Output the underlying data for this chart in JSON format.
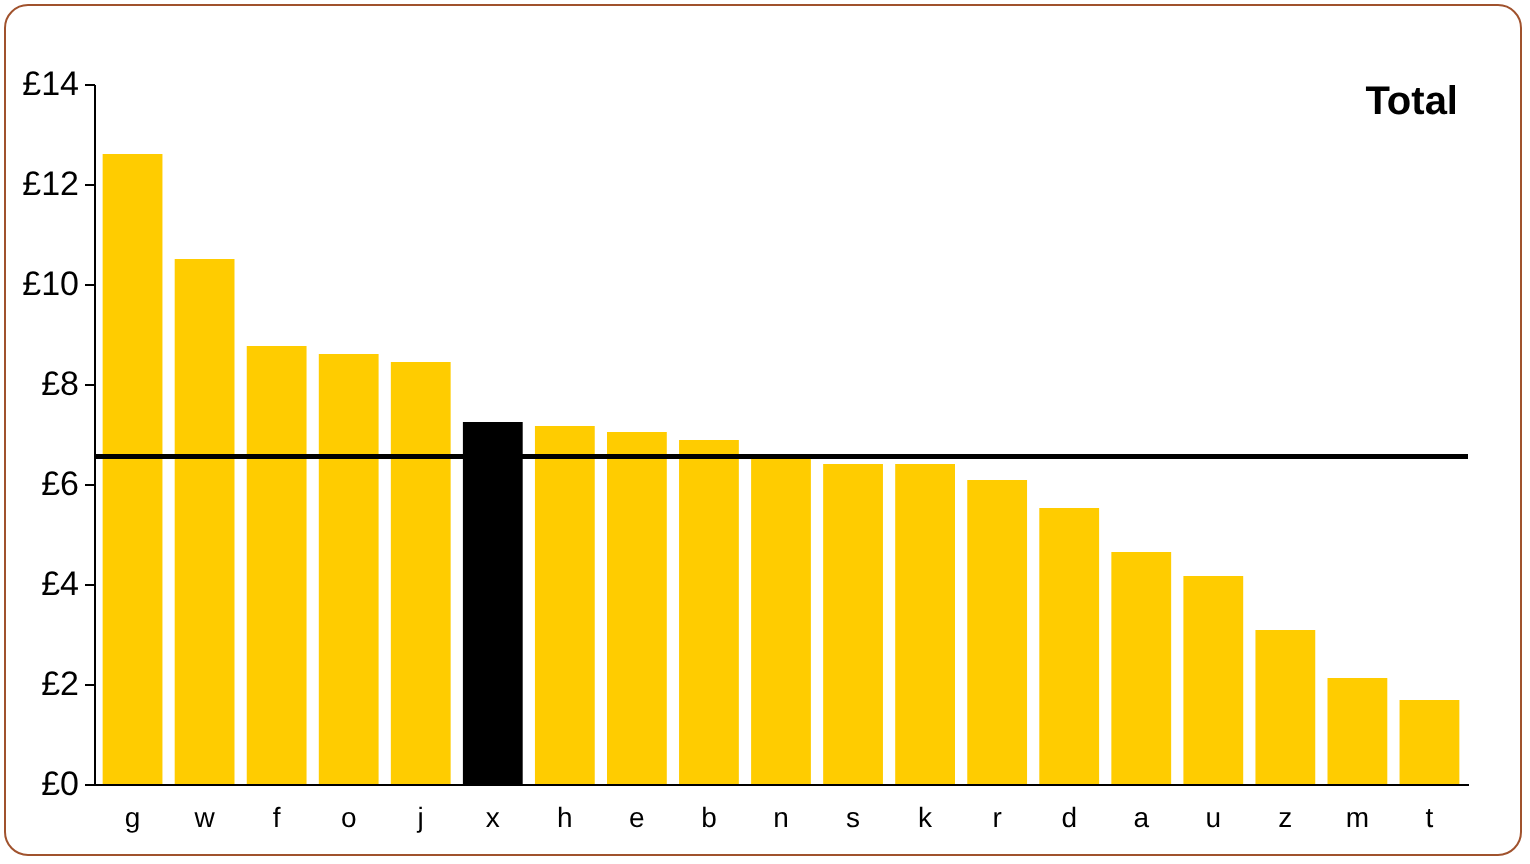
{
  "chart_data": {
    "type": "bar",
    "title": "Total",
    "categories": [
      "g",
      "w",
      "f",
      "o",
      "j",
      "x",
      "h",
      "e",
      "b",
      "n",
      "s",
      "k",
      "r",
      "d",
      "a",
      "u",
      "z",
      "m",
      "t"
    ],
    "values": [
      12.6,
      10.5,
      8.76,
      8.6,
      8.44,
      7.24,
      7.16,
      7.04,
      6.88,
      6.56,
      6.4,
      6.4,
      6.08,
      5.52,
      4.64,
      4.16,
      3.08,
      2.12,
      1.68
    ],
    "colors": [
      "#ffcc00",
      "#ffcc00",
      "#ffcc00",
      "#ffcc00",
      "#ffcc00",
      "#000000",
      "#ffcc00",
      "#ffcc00",
      "#ffcc00",
      "#ffcc00",
      "#ffcc00",
      "#ffcc00",
      "#ffcc00",
      "#ffcc00",
      "#ffcc00",
      "#ffcc00",
      "#ffcc00",
      "#ffcc00",
      "#ffcc00"
    ],
    "ylim": [
      0,
      14
    ],
    "yticks": [
      {
        "value": 0,
        "label": "£0"
      },
      {
        "value": 2,
        "label": "£2"
      },
      {
        "value": 4,
        "label": "£4"
      },
      {
        "value": 6,
        "label": "£6"
      },
      {
        "value": 8,
        "label": "£8"
      },
      {
        "value": 10,
        "label": "£10"
      },
      {
        "value": 12,
        "label": "£12"
      },
      {
        "value": 14,
        "label": "£14"
      }
    ],
    "ref_lines": [
      {
        "axis": "y",
        "value": 6.55,
        "color": "#000000"
      }
    ],
    "grid": false
  }
}
